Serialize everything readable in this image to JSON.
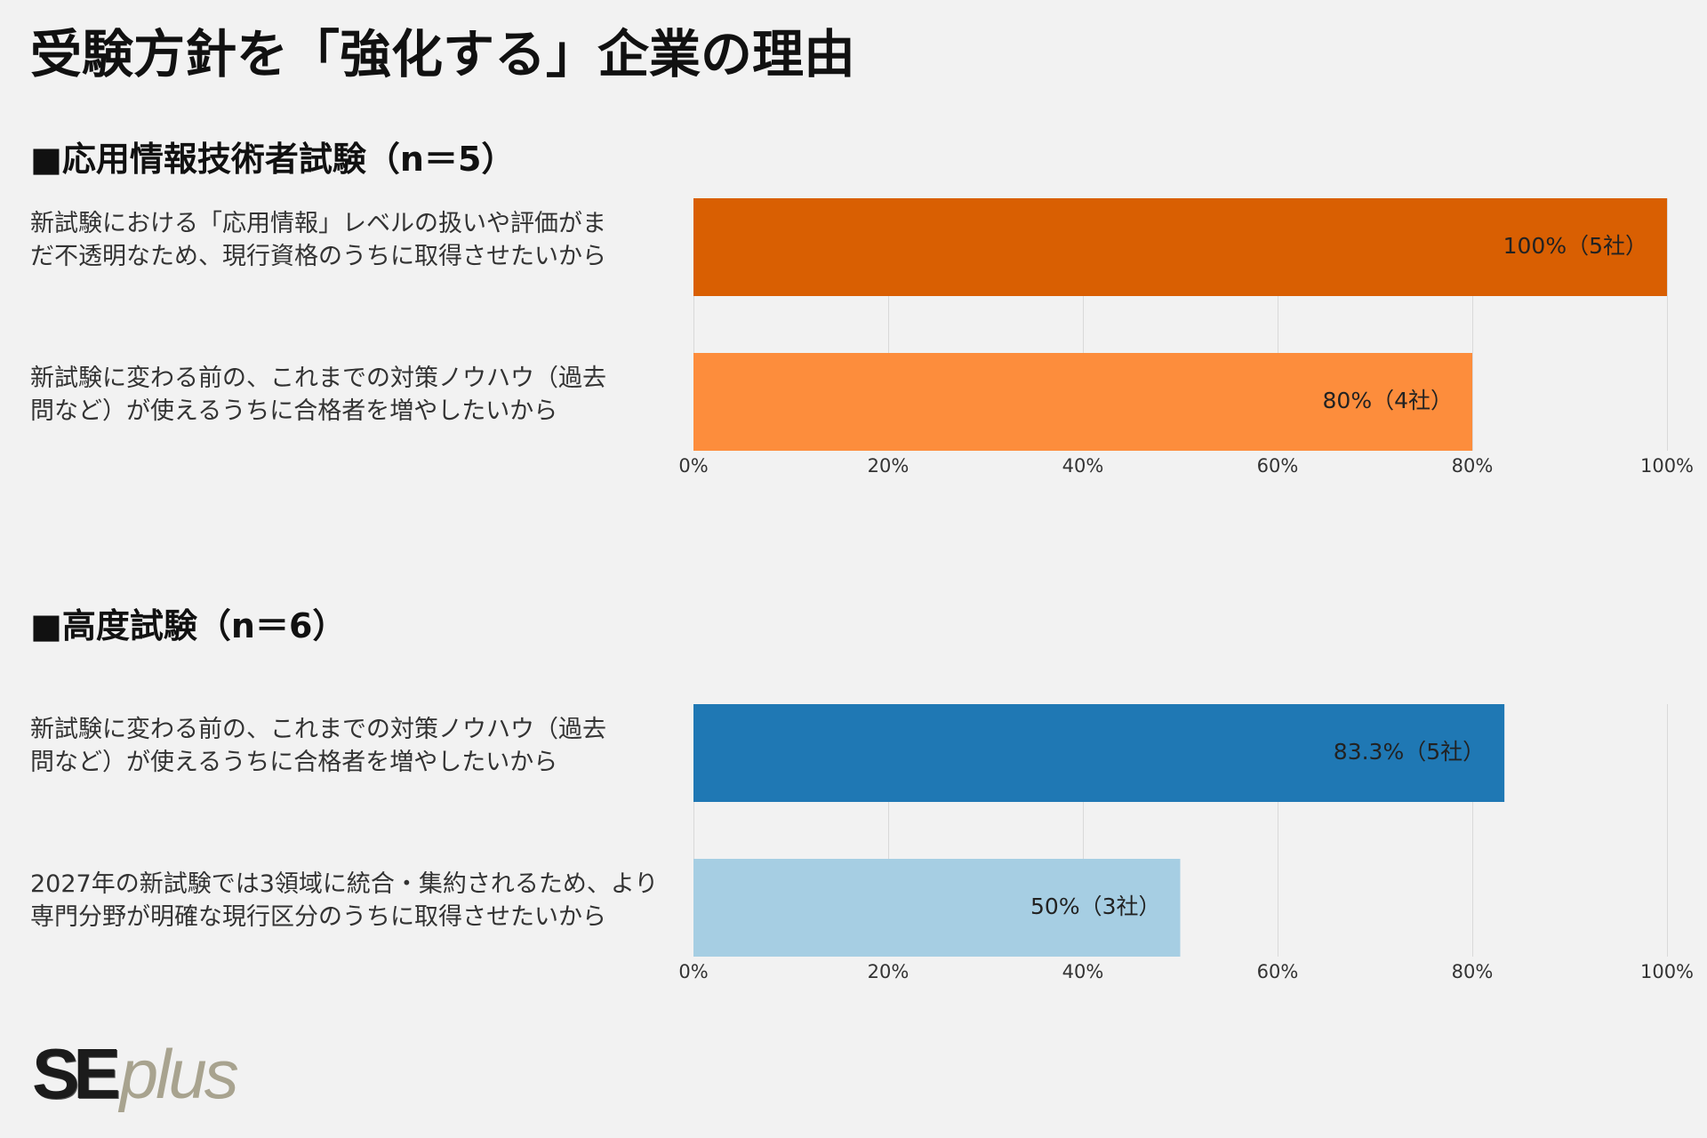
{
  "title": "受験方針を「強化する」企業の理由",
  "colors": {
    "background": "#F2F2F2",
    "gridline": "#D9D9D9",
    "text": "#333333"
  },
  "chart_data": [
    {
      "type": "bar",
      "orientation": "horizontal",
      "title": "■応用情報技術者試験（n＝5）",
      "categories": [
        "新試験における「応用情報」レベルの扱いや評価がま\nだ不透明なため、現行資格のうちに取得させたいから",
        "新試験に変わる前の、これまでの対策ノウハウ（過去\n問など）が使えるうちに合格者を増やしたいから"
      ],
      "values": [
        100,
        80
      ],
      "data_labels": [
        "100%（5社）",
        "80%（4社）"
      ],
      "bar_colors": [
        "#D95F02",
        "#FD8D3C"
      ],
      "xlim": [
        0,
        100
      ],
      "xticks": [
        0,
        20,
        40,
        60,
        80,
        100
      ],
      "xtick_labels": [
        "0%",
        "20%",
        "40%",
        "60%",
        "80%",
        "100%"
      ],
      "grid": true,
      "xlabel": "",
      "ylabel": ""
    },
    {
      "type": "bar",
      "orientation": "horizontal",
      "title": "■高度試験（n＝6）",
      "categories": [
        "新試験に変わる前の、これまでの対策ノウハウ（過去\n問など）が使えるうちに合格者を増やしたいから",
        "2027年の新試験では3領域に統合・集約されるため、より\n専門分野が明確な現行区分のうちに取得させたいから"
      ],
      "values": [
        83.3,
        50
      ],
      "data_labels": [
        "83.3%（5社）",
        "50%（3社）"
      ],
      "bar_colors": [
        "#1F78B4",
        "#A6CEE3"
      ],
      "xlim": [
        0,
        100
      ],
      "xticks": [
        0,
        20,
        40,
        60,
        80,
        100
      ],
      "xtick_labels": [
        "0%",
        "20%",
        "40%",
        "60%",
        "80%",
        "100%"
      ],
      "grid": true,
      "xlabel": "",
      "ylabel": ""
    }
  ],
  "logo": {
    "text_primary": "SE",
    "text_secondary": "plus",
    "color_primary": "#1B1B1B",
    "color_secondary": "#A8A38F"
  }
}
